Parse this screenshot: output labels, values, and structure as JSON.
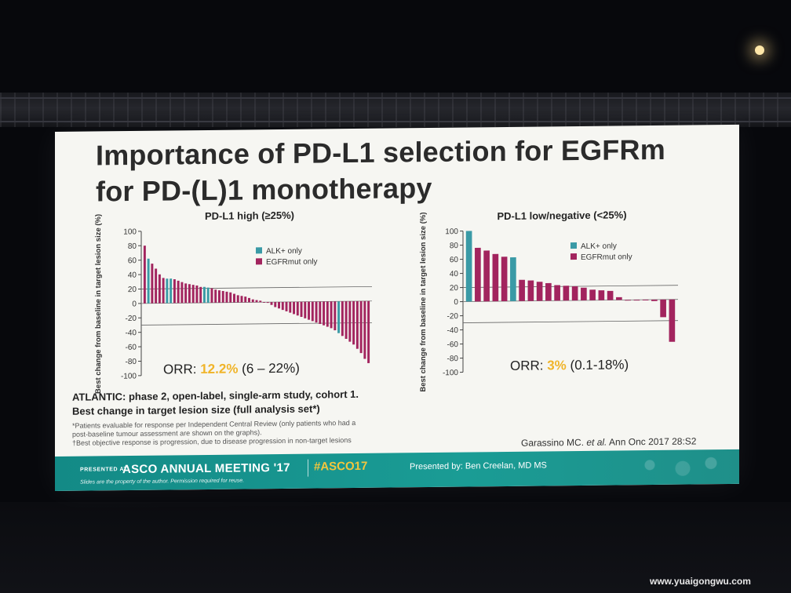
{
  "slide": {
    "title": "Importance of PD-L1 selection for EGFRm for PD-(L)1 monotherapy",
    "study_line1": "ATLANTIC: phase 2, open-label, single-arm study, cohort 1.",
    "study_line2": "Best change in target lesion size (full analysis set*)",
    "footnote1": "*Patients evaluable for response per Independent Central Review (only patients who had a",
    "footnote2": "post-baseline tumour assessment are shown on the graphs).",
    "footnote3": "†Best objective response is progression, due to disease progression in non-target lesions",
    "citation_prefix": "Garassino MC. ",
    "citation_etal": "et al.",
    "citation_suffix": " Ann Onc 2017 28:S2"
  },
  "banner": {
    "presented_at": "PRESENTED AT:",
    "meeting": "ASCO ANNUAL MEETING '17",
    "hashtag": "#ASCO17",
    "presented_by": "Presented by: Ben Creelan, MD MS",
    "note": "Slides are the property of the author. Permission required for reuse."
  },
  "watermark": "www.yuaigongwu.com",
  "colors": {
    "alk": "#3a9aa6",
    "egfr": "#a2245e",
    "orr": "#f0b429",
    "banner": "#1a9c95"
  },
  "chart_data": [
    {
      "type": "bar",
      "title": "PD-L1 high (≥25%)",
      "ylabel": "Best change from baseline in target lesion size (%)",
      "ylim": [
        -100,
        100
      ],
      "yticks": [
        100,
        80,
        60,
        40,
        20,
        0,
        -20,
        -40,
        -60,
        -80,
        -100
      ],
      "reference_lines": [
        20,
        -30
      ],
      "legend": {
        "position": "top-right",
        "entries": [
          "ALK+ only",
          "EGFRmut only"
        ]
      },
      "orr_label": "ORR: ",
      "orr_value": "12.2%",
      "orr_ci": " (6 – 22%)",
      "series": {
        "values": [
          80,
          62,
          55,
          48,
          40,
          35,
          34,
          34,
          33,
          31,
          29,
          27,
          26,
          25,
          24,
          22,
          22,
          21,
          20,
          18,
          17,
          16,
          15,
          14,
          12,
          10,
          9,
          8,
          6,
          4,
          3,
          2,
          0,
          -1,
          -4,
          -7,
          -9,
          -11,
          -13,
          -15,
          -17,
          -19,
          -21,
          -23,
          -25,
          -27,
          -29,
          -31,
          -33,
          -35,
          -37,
          -40,
          -44,
          -48,
          -52,
          -56,
          -60,
          -66,
          -72,
          -80,
          -86
        ],
        "group": [
          "E",
          "A",
          "E",
          "E",
          "E",
          "E",
          "A",
          "A",
          "E",
          "E",
          "E",
          "E",
          "E",
          "E",
          "E",
          "E",
          "A",
          "A",
          "E",
          "E",
          "E",
          "E",
          "E",
          "E",
          "E",
          "E",
          "E",
          "E",
          "E",
          "E",
          "E",
          "E",
          "E",
          "E",
          "E",
          "E",
          "E",
          "E",
          "E",
          "E",
          "E",
          "E",
          "E",
          "E",
          "E",
          "E",
          "E",
          "E",
          "E",
          "E",
          "E",
          "E",
          "A",
          "E",
          "E",
          "E",
          "E",
          "E",
          "E",
          "E",
          "E"
        ]
      }
    },
    {
      "type": "bar",
      "title": "PD-L1 low/negative (<25%)",
      "ylabel": "Best change from baseline in target lesion size (%)",
      "ylim": [
        -100,
        100
      ],
      "yticks": [
        100,
        80,
        60,
        40,
        20,
        0,
        -20,
        -40,
        -60,
        -80,
        -100
      ],
      "reference_lines": [
        20,
        -30
      ],
      "legend": {
        "position": "top-right",
        "entries": [
          "ALK+ only",
          "EGFRmut only"
        ]
      },
      "orr_label": "ORR: ",
      "orr_value": "3%",
      "orr_ci": " (0.1-18%)",
      "series": {
        "values": [
          100,
          76,
          72,
          67,
          63,
          62,
          30,
          29,
          27,
          25,
          22,
          21,
          20,
          18,
          15,
          14,
          13,
          4,
          0,
          -1,
          -1,
          -2,
          -25,
          -60
        ],
        "group": [
          "A",
          "E",
          "E",
          "E",
          "E",
          "A",
          "E",
          "E",
          "E",
          "E",
          "E",
          "E",
          "E",
          "E",
          "E",
          "E",
          "E",
          "E",
          "E",
          "E",
          "E",
          "E",
          "E",
          "E"
        ]
      }
    }
  ]
}
